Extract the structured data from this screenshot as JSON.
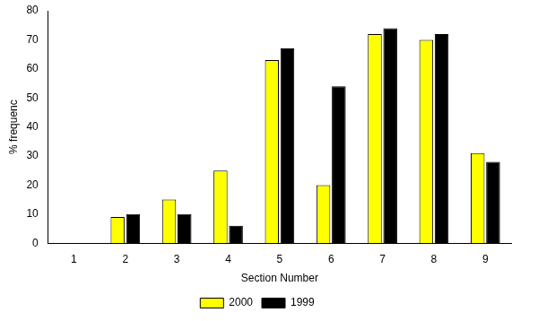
{
  "chart_data": {
    "type": "bar",
    "x_label": "Section Number",
    "y_label": "% frequenc",
    "categories": [
      "1",
      "2",
      "3",
      "4",
      "5",
      "6",
      "7",
      "8",
      "9"
    ],
    "series": [
      {
        "name": "2000",
        "color": "#ffff00",
        "values": [
          0,
          9,
          15,
          25,
          63,
          20,
          72,
          70,
          31
        ]
      },
      {
        "name": "1999",
        "color": "#000000",
        "values": [
          0,
          10,
          10,
          6,
          67,
          54,
          74,
          72,
          28
        ]
      }
    ],
    "ylim": [
      0,
      80
    ],
    "yticks": [
      0,
      10,
      20,
      30,
      40,
      50,
      60,
      70,
      80
    ],
    "grid": false,
    "legend": "bottom"
  }
}
